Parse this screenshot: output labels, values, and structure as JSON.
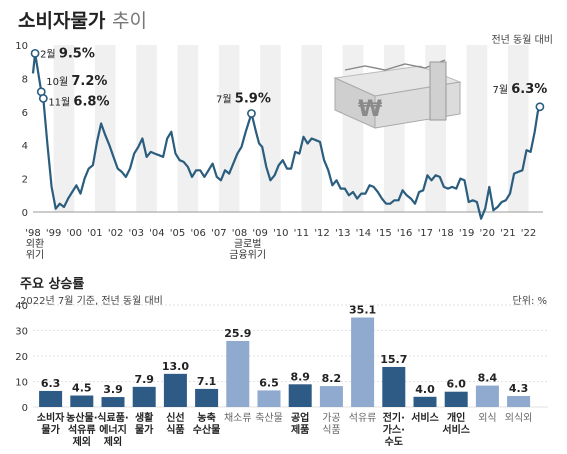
{
  "header": {
    "title": "소비자물가",
    "title_suffix": "추이",
    "unit_note": "전년 동월 대비"
  },
  "bar_header": {
    "title": "주요 상승률",
    "date_note": "2022년 7월 기준, 전년 동월 대비",
    "unit_note": "단위: %"
  },
  "colors": {
    "line": "#2a5d7e",
    "bar_dark": "#2e5b86",
    "bar_light": "#8fa9cf",
    "stripe": "#f0f0f0",
    "axis_text": "#333333",
    "grid": "#d9d9d9"
  },
  "chart_data": [
    {
      "type": "line",
      "title": "소비자물가 추이",
      "ylabel": "전년 동월 대비",
      "ylim": [
        -1,
        10
      ],
      "yticks": [
        0,
        2,
        4,
        6,
        8,
        10
      ],
      "xlim": [
        1998.0,
        2022.7
      ],
      "xticks": [
        {
          "label": "'98",
          "value": 1998.0
        },
        {
          "label": "'99",
          "value": 1999.0
        },
        {
          "label": "'00",
          "value": 2000.0
        },
        {
          "label": "'01",
          "value": 2001.0
        },
        {
          "label": "'02",
          "value": 2002.0
        },
        {
          "label": "'03",
          "value": 2003.0
        },
        {
          "label": "'04",
          "value": 2004.0
        },
        {
          "label": "'05",
          "value": 2005.0
        },
        {
          "label": "'06",
          "value": 2006.0
        },
        {
          "label": "'07",
          "value": 2007.0
        },
        {
          "label": "'08",
          "value": 2008.0
        },
        {
          "label": "'09",
          "value": 2009.0
        },
        {
          "label": "'10",
          "value": 2010.0
        },
        {
          "label": "'11",
          "value": 2011.0
        },
        {
          "label": "'12",
          "value": 2012.0
        },
        {
          "label": "'13",
          "value": 2013.0
        },
        {
          "label": "'14",
          "value": 2014.0
        },
        {
          "label": "'15",
          "value": 2015.0
        },
        {
          "label": "'16",
          "value": 2016.0
        },
        {
          "label": "'17",
          "value": 2017.0
        },
        {
          "label": "'18",
          "value": 2018.0
        },
        {
          "label": "'19",
          "value": 2019.0
        },
        {
          "label": "'20",
          "value": 2020.0
        },
        {
          "label": "'21",
          "value": 2021.0
        },
        {
          "label": "'22",
          "value": 2022.0
        }
      ],
      "x_notes": [
        {
          "text": "외환",
          "value": 1998.0,
          "line": 1
        },
        {
          "text": "위기",
          "value": 1998.0,
          "line": 2
        },
        {
          "text": "글로벌",
          "value": 2008.3,
          "line": 1
        },
        {
          "text": "금융위기",
          "value": 2008.3,
          "line": 2
        }
      ],
      "series": [
        {
          "points": [
            [
              1998.0,
              8.3
            ],
            [
              1998.1,
              9.5
            ],
            [
              1998.4,
              7.2
            ],
            [
              1998.5,
              6.8
            ],
            [
              1998.7,
              4.0
            ],
            [
              1998.9,
              1.5
            ],
            [
              1999.1,
              0.2
            ],
            [
              1999.3,
              0.5
            ],
            [
              1999.5,
              0.3
            ],
            [
              1999.7,
              0.8
            ],
            [
              1999.9,
              1.2
            ],
            [
              2000.1,
              1.6
            ],
            [
              2000.3,
              1.1
            ],
            [
              2000.5,
              2.0
            ],
            [
              2000.7,
              2.6
            ],
            [
              2000.9,
              2.8
            ],
            [
              2001.1,
              4.2
            ],
            [
              2001.3,
              5.3
            ],
            [
              2001.5,
              4.6
            ],
            [
              2001.7,
              4.0
            ],
            [
              2001.9,
              3.3
            ],
            [
              2002.1,
              2.6
            ],
            [
              2002.3,
              2.4
            ],
            [
              2002.5,
              2.1
            ],
            [
              2002.7,
              2.6
            ],
            [
              2002.9,
              3.5
            ],
            [
              2003.1,
              3.9
            ],
            [
              2003.3,
              4.4
            ],
            [
              2003.5,
              3.3
            ],
            [
              2003.7,
              3.6
            ],
            [
              2003.9,
              3.5
            ],
            [
              2004.1,
              3.4
            ],
            [
              2004.3,
              3.3
            ],
            [
              2004.5,
              4.4
            ],
            [
              2004.7,
              4.8
            ],
            [
              2004.9,
              3.5
            ],
            [
              2005.1,
              3.1
            ],
            [
              2005.3,
              3.0
            ],
            [
              2005.5,
              2.7
            ],
            [
              2005.7,
              2.1
            ],
            [
              2005.9,
              2.5
            ],
            [
              2006.1,
              2.5
            ],
            [
              2006.3,
              2.1
            ],
            [
              2006.5,
              2.5
            ],
            [
              2006.7,
              2.9
            ],
            [
              2006.9,
              2.1
            ],
            [
              2007.1,
              1.9
            ],
            [
              2007.3,
              2.5
            ],
            [
              2007.5,
              2.3
            ],
            [
              2007.7,
              2.9
            ],
            [
              2007.9,
              3.5
            ],
            [
              2008.1,
              3.9
            ],
            [
              2008.3,
              4.8
            ],
            [
              2008.58,
              5.9
            ],
            [
              2008.8,
              4.8
            ],
            [
              2008.95,
              4.1
            ],
            [
              2009.1,
              3.9
            ],
            [
              2009.3,
              2.7
            ],
            [
              2009.5,
              1.9
            ],
            [
              2009.7,
              2.2
            ],
            [
              2009.9,
              2.8
            ],
            [
              2010.1,
              3.1
            ],
            [
              2010.3,
              2.6
            ],
            [
              2010.5,
              2.6
            ],
            [
              2010.7,
              3.6
            ],
            [
              2010.9,
              3.5
            ],
            [
              2011.1,
              4.5
            ],
            [
              2011.3,
              4.1
            ],
            [
              2011.5,
              4.4
            ],
            [
              2011.7,
              4.3
            ],
            [
              2011.9,
              4.2
            ],
            [
              2012.1,
              3.1
            ],
            [
              2012.3,
              2.5
            ],
            [
              2012.5,
              1.6
            ],
            [
              2012.7,
              1.9
            ],
            [
              2012.9,
              1.4
            ],
            [
              2013.1,
              1.4
            ],
            [
              2013.3,
              1.0
            ],
            [
              2013.5,
              1.2
            ],
            [
              2013.7,
              0.8
            ],
            [
              2013.9,
              1.1
            ],
            [
              2014.1,
              1.1
            ],
            [
              2014.3,
              1.6
            ],
            [
              2014.5,
              1.5
            ],
            [
              2014.7,
              1.2
            ],
            [
              2014.9,
              0.8
            ],
            [
              2015.1,
              0.5
            ],
            [
              2015.3,
              0.5
            ],
            [
              2015.5,
              0.7
            ],
            [
              2015.7,
              0.7
            ],
            [
              2015.9,
              1.3
            ],
            [
              2016.1,
              1.0
            ],
            [
              2016.3,
              0.8
            ],
            [
              2016.5,
              0.5
            ],
            [
              2016.7,
              1.2
            ],
            [
              2016.9,
              1.3
            ],
            [
              2017.1,
              2.2
            ],
            [
              2017.3,
              1.9
            ],
            [
              2017.5,
              2.2
            ],
            [
              2017.7,
              2.1
            ],
            [
              2017.9,
              1.5
            ],
            [
              2018.1,
              1.4
            ],
            [
              2018.3,
              1.5
            ],
            [
              2018.5,
              1.4
            ],
            [
              2018.7,
              2.0
            ],
            [
              2018.9,
              1.9
            ],
            [
              2019.1,
              0.6
            ],
            [
              2019.3,
              0.7
            ],
            [
              2019.5,
              0.6
            ],
            [
              2019.7,
              -0.4
            ],
            [
              2019.9,
              0.2
            ],
            [
              2020.1,
              1.5
            ],
            [
              2020.3,
              0.1
            ],
            [
              2020.5,
              0.3
            ],
            [
              2020.7,
              0.6
            ],
            [
              2020.9,
              0.7
            ],
            [
              2021.1,
              1.1
            ],
            [
              2021.3,
              2.3
            ],
            [
              2021.5,
              2.4
            ],
            [
              2021.7,
              2.5
            ],
            [
              2021.9,
              3.7
            ],
            [
              2022.1,
              3.6
            ],
            [
              2022.3,
              4.8
            ],
            [
              2022.45,
              6.0
            ],
            [
              2022.55,
              6.3
            ]
          ]
        }
      ],
      "annotations": [
        {
          "label": "2월",
          "value_text": "9.5%",
          "x": 1998.1,
          "y": 9.5
        },
        {
          "label": "10월",
          "value_text": "7.2%",
          "x": 1998.4,
          "y": 7.2
        },
        {
          "label": "11월",
          "value_text": "6.8%",
          "x": 1998.5,
          "y": 6.8
        },
        {
          "label": "7월",
          "value_text": "5.9%",
          "x": 2008.58,
          "y": 5.9
        },
        {
          "label": "7월",
          "value_text": "6.3%",
          "x": 2022.55,
          "y": 6.3
        }
      ]
    },
    {
      "type": "bar",
      "title": "주요 상승률",
      "ylabel": "단위: %",
      "ylim": [
        0,
        40
      ],
      "yticks": [
        0,
        10,
        20,
        30,
        40
      ],
      "categories": [
        [
          "소비자",
          "물가"
        ],
        [
          "농산물·",
          "석유류",
          "제외"
        ],
        [
          "식료품·",
          "에너지",
          "제외"
        ],
        [
          "생활",
          "물가"
        ],
        [
          "신선",
          "식품"
        ],
        [
          "농축",
          "수산물"
        ],
        [
          "채소류"
        ],
        [
          "축산물"
        ],
        [
          "공업",
          "제품"
        ],
        [
          "가공",
          "식품"
        ],
        [
          "석유류"
        ],
        [
          "전기·",
          "가스·",
          "수도"
        ],
        [
          "서비스"
        ],
        [
          "개인",
          "서비스"
        ],
        [
          "외식"
        ],
        [
          "외식외"
        ]
      ],
      "values": [
        6.3,
        4.5,
        3.9,
        7.9,
        13.0,
        7.1,
        25.9,
        6.5,
        8.9,
        8.2,
        35.1,
        15.7,
        4.0,
        6.0,
        8.4,
        4.3
      ],
      "value_labels": [
        "6.3",
        "4.5",
        "3.9",
        "7.9",
        "13.0",
        "7.1",
        "25.9",
        "6.5",
        "8.9",
        "8.2",
        "35.1",
        "15.7",
        "4.0",
        "6.0",
        "8.4",
        "4.3"
      ],
      "shade": [
        "dark",
        "dark",
        "dark",
        "dark",
        "dark",
        "dark",
        "light",
        "light",
        "dark",
        "light",
        "light",
        "dark",
        "dark",
        "dark",
        "light",
        "light"
      ]
    }
  ]
}
